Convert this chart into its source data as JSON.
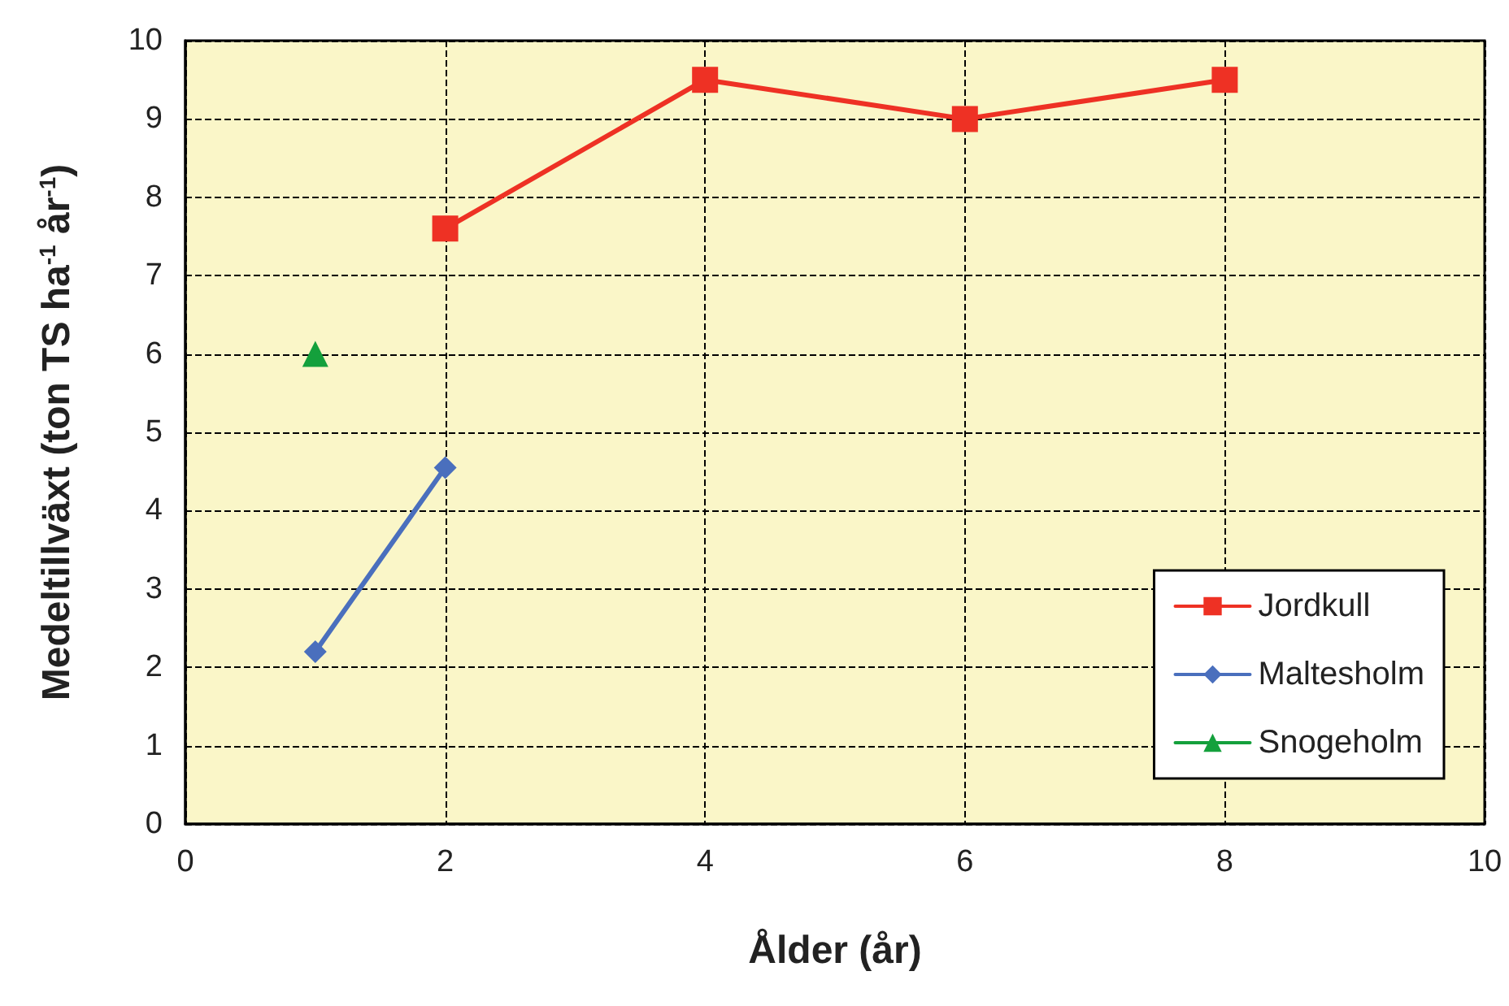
{
  "chart_data": {
    "type": "line",
    "xlabel": "Ålder (år)",
    "ylabel": "Medeltillväxt (ton TS ha$^{-1}$ år$^{-1}$)",
    "xlim": [
      0,
      10
    ],
    "xticks": [
      0,
      2,
      4,
      6,
      8,
      10
    ],
    "ylim": [
      0,
      10
    ],
    "yticks": [
      0,
      1,
      2,
      3,
      4,
      5,
      6,
      7,
      8,
      9,
      10
    ],
    "grid": true,
    "legend": "bottom right",
    "line_style": "solid",
    "series": [
      {
        "name": "Jordkull",
        "color": "#ee3124",
        "marker": "square",
        "x": [
          2,
          4,
          6,
          8
        ],
        "values": [
          7.6,
          9.5,
          9.0,
          9.5
        ]
      },
      {
        "name": "Maltesholm",
        "color": "#4a6fbd",
        "marker": "diamond",
        "x": [
          1,
          2
        ],
        "values": [
          2.2,
          4.55
        ]
      },
      {
        "name": "Snogeholm",
        "color": "#14a03c",
        "marker": "triangle",
        "x": [
          1
        ],
        "values": [
          6.0
        ]
      }
    ]
  }
}
